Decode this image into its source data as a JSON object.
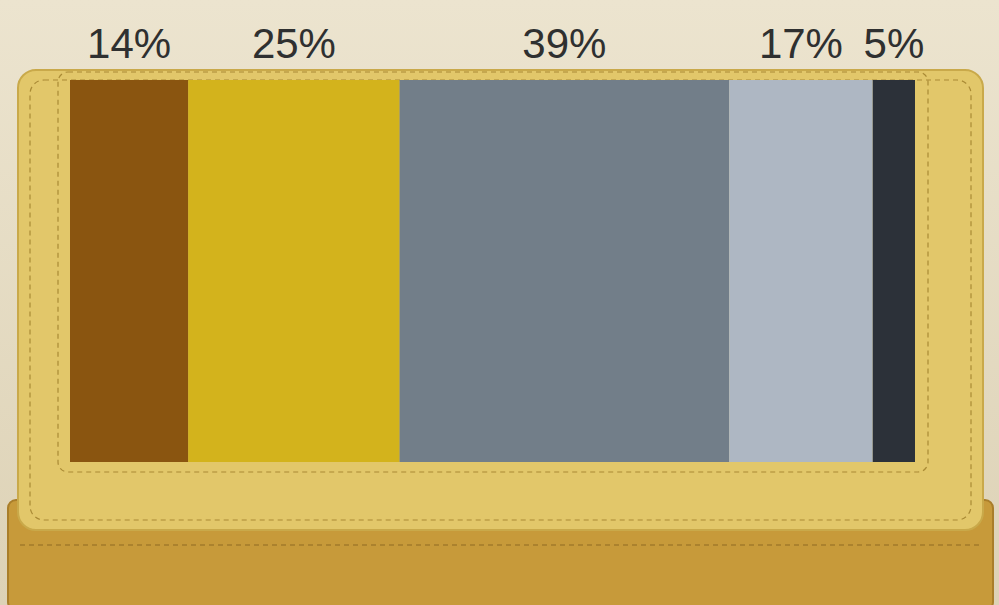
{
  "chart_data": {
    "type": "bar",
    "orientation": "horizontal",
    "stacked": true,
    "categories": [
      null
    ],
    "series": [
      {
        "color": "#8a5510",
        "values": [
          14
        ],
        "value_labels": [
          "14%"
        ]
      },
      {
        "color": "#d3b31c",
        "values": [
          25
        ],
        "value_labels": [
          "25%"
        ]
      },
      {
        "color": "#727e89",
        "values": [
          39
        ],
        "value_labels": [
          "39%"
        ]
      },
      {
        "color": "#aeb7c3",
        "values": [
          17
        ],
        "value_labels": [
          "17%"
        ]
      },
      {
        "color": "#2c3139",
        "values": [
          5
        ],
        "value_labels": [
          "5%"
        ]
      }
    ],
    "xlim": [
      0,
      100
    ],
    "data_labels": true,
    "tick_labels": false,
    "grid": false
  }
}
